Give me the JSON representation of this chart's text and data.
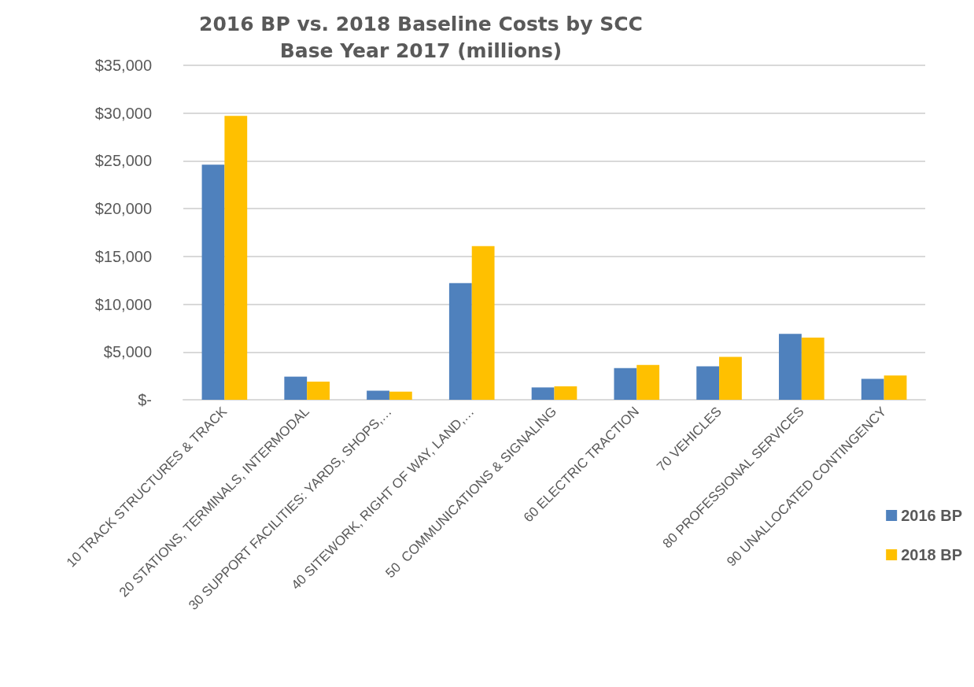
{
  "chart_data": {
    "type": "bar",
    "title": "2016 BP vs. 2018 Baseline Costs by SCC\nBase Year 2017 (millions)",
    "categories": [
      "10 TRACK STRUCTURES & TRACK",
      "20 STATIONS, TERMINALS, INTERMODAL",
      "30 SUPPORT FACILITIES: YARDS, SHOPS,…",
      "40 SITEWORK, RIGHT OF WAY, LAND,…",
      "50  COMMUNICATIONS & SIGNALING",
      "60 ELECTRIC TRACTION",
      "70 VEHICLES",
      "80 PROFESSIONAL SERVICES",
      "90 UNALLOCATED CONTINGENCY"
    ],
    "series": [
      {
        "name": "2016 BP",
        "color": "#4f81bd",
        "values": [
          24600,
          2420,
          950,
          12200,
          1290,
          3320,
          3500,
          6890,
          2190
        ]
      },
      {
        "name": "2018 BP",
        "color": "#ffc000",
        "values": [
          29700,
          1900,
          850,
          16080,
          1410,
          3650,
          4490,
          6500,
          2540
        ]
      }
    ],
    "ylim": [
      0,
      35000
    ],
    "yticks": [
      {
        "value": 0,
        "label": "$-"
      },
      {
        "value": 5000,
        "label": "$5,000"
      },
      {
        "value": 10000,
        "label": "$10,000"
      },
      {
        "value": 15000,
        "label": "$15,000"
      },
      {
        "value": 20000,
        "label": "$20,000"
      },
      {
        "value": 25000,
        "label": "$25,000"
      },
      {
        "value": 30000,
        "label": "$30,000"
      },
      {
        "value": 35000,
        "label": "$35,000"
      }
    ],
    "grid": "y",
    "legend": "right"
  }
}
